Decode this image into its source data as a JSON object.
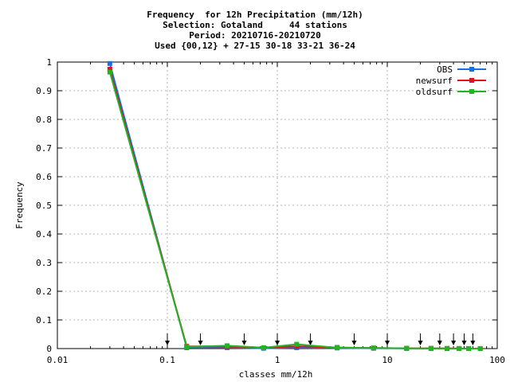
{
  "chart_data": {
    "type": "line",
    "title_lines": [
      "Frequency  for 12h Precipitation (mm/12h)",
      "Selection: Gotaland     44 stations",
      "Period: 20210716-20210720",
      "Used {00,12} + 27-15 30-18 33-21 36-24"
    ],
    "xlabel": "classes mm/12h",
    "ylabel": "Frequency",
    "x_scale": "log",
    "xlim": [
      0.01,
      100
    ],
    "ylim": [
      0,
      1
    ],
    "x_ticks": [
      0.01,
      0.1,
      1,
      10,
      100
    ],
    "x_tick_labels": [
      "0.01",
      "0.1",
      "1",
      "10",
      "100"
    ],
    "y_ticks": [
      0,
      0.1,
      0.2,
      0.3,
      0.4,
      0.5,
      0.6,
      0.7,
      0.8,
      0.9,
      1
    ],
    "y_tick_labels": [
      "0",
      "0.1",
      "0.2",
      "0.3",
      "0.4",
      "0.5",
      "0.6",
      "0.7",
      "0.8",
      "0.9",
      "1"
    ],
    "grid": true,
    "legend_position": "top-right",
    "class_limit_arrows": [
      0.1,
      0.2,
      0.5,
      1,
      2,
      5,
      10,
      20,
      30,
      40,
      50,
      60
    ],
    "x": [
      0.03,
      0.15,
      0.35,
      0.75,
      1.5,
      3.5,
      7.5,
      15,
      25,
      35,
      45,
      55,
      70
    ],
    "series": [
      {
        "name": "OBS",
        "color": "#1a6fe0",
        "values": [
          0.995,
          0.003,
          0.003,
          0.001,
          0.003,
          0.002,
          0.001,
          0.0005,
          0.0003,
          0.0002,
          0.0001,
          0.0001,
          0.0001
        ]
      },
      {
        "name": "newsurf",
        "color": "#e01414",
        "values": [
          0.975,
          0.008,
          0.007,
          0.003,
          0.008,
          0.004,
          0.002,
          0.001,
          0.0008,
          0.0005,
          0.0003,
          0.0002,
          0.0001
        ]
      },
      {
        "name": "oldsurf",
        "color": "#22b422",
        "values": [
          0.965,
          0.006,
          0.01,
          0.003,
          0.015,
          0.003,
          0.002,
          0.001,
          0.0005,
          0.0003,
          0.0002,
          0.0001,
          0.0001
        ]
      }
    ]
  }
}
